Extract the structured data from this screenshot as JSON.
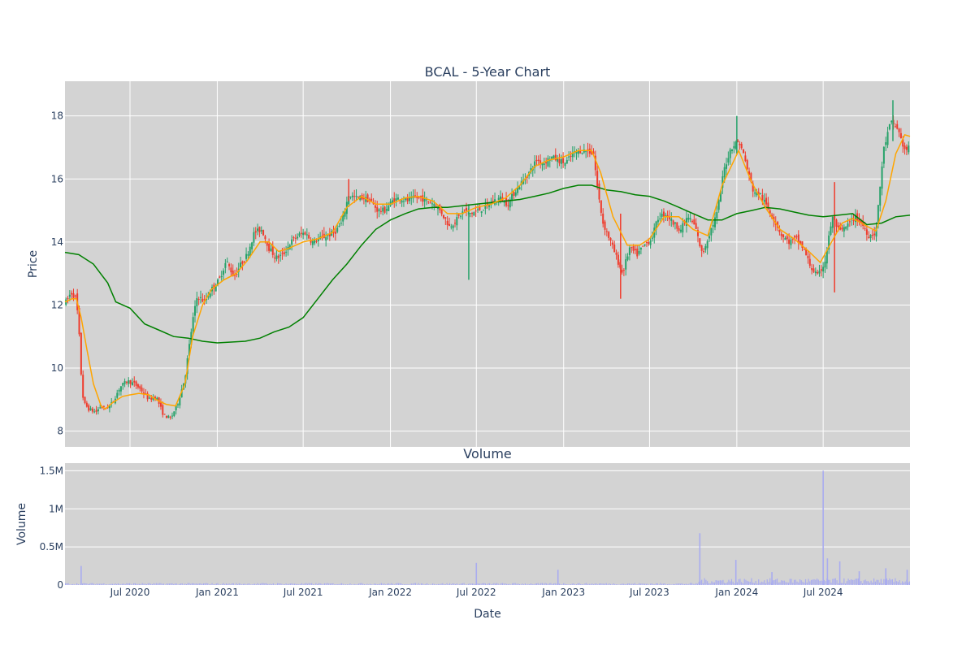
{
  "chart_data": [
    {
      "type": "candlestick",
      "title": "BCAL - 5-Year Chart",
      "ylabel": "Price",
      "xlabel": "",
      "ylim": [
        7.5,
        19.1
      ],
      "y_ticks": [
        8,
        10,
        12,
        14,
        16,
        18
      ],
      "grid": true,
      "colors": {
        "increasing": "#26a269",
        "decreasing": "#ef3b2c",
        "ma_short": "#ffa500",
        "ma_long": "#008000",
        "plot_bg": "#d3d3d3",
        "grid": "#ffffff"
      },
      "x_range": [
        "2020-02-15",
        "2024-12-31"
      ],
      "x_ticks": [
        {
          "date": "2020-07-01",
          "label": "Jul 2020"
        },
        {
          "date": "2021-01-01",
          "label": "Jan 2021"
        },
        {
          "date": "2021-07-01",
          "label": "Jul 2021"
        },
        {
          "date": "2022-01-01",
          "label": "Jan 2022"
        },
        {
          "date": "2022-07-01",
          "label": "Jul 2022"
        },
        {
          "date": "2023-01-01",
          "label": "Jan 2023"
        },
        {
          "date": "2023-07-01",
          "label": "Jul 2023"
        },
        {
          "date": "2024-01-01",
          "label": "Jan 2024"
        },
        {
          "date": "2024-07-01",
          "label": "Jul 2024"
        }
      ],
      "close_path": [
        [
          "2020-02-17",
          12.1
        ],
        [
          "2020-02-28",
          12.4
        ],
        [
          "2020-03-10",
          12.2
        ],
        [
          "2020-03-16",
          11.0
        ],
        [
          "2020-03-19",
          10.0
        ],
        [
          "2020-03-25",
          8.9
        ],
        [
          "2020-04-05",
          8.7
        ],
        [
          "2020-04-20",
          8.6
        ],
        [
          "2020-05-01",
          8.8
        ],
        [
          "2020-05-10",
          8.7
        ],
        [
          "2020-05-25",
          8.9
        ],
        [
          "2020-06-10",
          9.4
        ],
        [
          "2020-06-25",
          9.6
        ],
        [
          "2020-07-10",
          9.5
        ],
        [
          "2020-07-25",
          9.3
        ],
        [
          "2020-08-10",
          9.0
        ],
        [
          "2020-08-25",
          9.1
        ],
        [
          "2020-09-10",
          8.5
        ],
        [
          "2020-09-25",
          8.4
        ],
        [
          "2020-10-10",
          8.9
        ],
        [
          "2020-10-25",
          9.7
        ],
        [
          "2020-11-10",
          11.5
        ],
        [
          "2020-11-20",
          12.3
        ],
        [
          "2020-12-05",
          12.1
        ],
        [
          "2020-12-20",
          12.5
        ],
        [
          "2021-01-05",
          12.8
        ],
        [
          "2021-01-20",
          13.4
        ],
        [
          "2021-02-05",
          12.9
        ],
        [
          "2021-02-20",
          13.3
        ],
        [
          "2021-03-05",
          13.6
        ],
        [
          "2021-03-20",
          14.3
        ],
        [
          "2021-04-05",
          14.4
        ],
        [
          "2021-04-20",
          13.8
        ],
        [
          "2021-05-05",
          13.5
        ],
        [
          "2021-05-20",
          13.6
        ],
        [
          "2021-06-05",
          14.0
        ],
        [
          "2021-06-20",
          14.2
        ],
        [
          "2021-07-05",
          14.3
        ],
        [
          "2021-07-20",
          14.0
        ],
        [
          "2021-08-05",
          14.1
        ],
        [
          "2021-08-20",
          14.2
        ],
        [
          "2021-09-05",
          14.3
        ],
        [
          "2021-09-20",
          14.6
        ],
        [
          "2021-10-05",
          15.5
        ],
        [
          "2021-10-20",
          15.4
        ],
        [
          "2021-11-05",
          15.4
        ],
        [
          "2021-11-20",
          15.3
        ],
        [
          "2021-12-05",
          15.0
        ],
        [
          "2021-12-20",
          15.0
        ],
        [
          "2022-01-05",
          15.3
        ],
        [
          "2022-01-20",
          15.4
        ],
        [
          "2022-02-05",
          15.3
        ],
        [
          "2022-02-20",
          15.4
        ],
        [
          "2022-03-05",
          15.4
        ],
        [
          "2022-03-20",
          15.3
        ],
        [
          "2022-04-05",
          15.2
        ],
        [
          "2022-04-20",
          14.9
        ],
        [
          "2022-05-05",
          14.5
        ],
        [
          "2022-05-20",
          14.7
        ],
        [
          "2022-06-05",
          15.0
        ],
        [
          "2022-06-20",
          14.9
        ],
        [
          "2022-07-05",
          15.0
        ],
        [
          "2022-07-20",
          15.1
        ],
        [
          "2022-08-05",
          15.3
        ],
        [
          "2022-08-20",
          15.4
        ],
        [
          "2022-09-05",
          15.2
        ],
        [
          "2022-09-20",
          15.6
        ],
        [
          "2022-10-05",
          15.9
        ],
        [
          "2022-10-20",
          16.2
        ],
        [
          "2022-11-05",
          16.6
        ],
        [
          "2022-11-20",
          16.5
        ],
        [
          "2022-12-05",
          16.7
        ],
        [
          "2022-12-20",
          16.6
        ],
        [
          "2023-01-05",
          16.5
        ],
        [
          "2023-01-20",
          16.8
        ],
        [
          "2023-02-05",
          16.9
        ],
        [
          "2023-02-20",
          16.9
        ],
        [
          "2023-03-05",
          16.8
        ],
        [
          "2023-03-15",
          15.5
        ],
        [
          "2023-03-25",
          14.6
        ],
        [
          "2023-04-05",
          14.2
        ],
        [
          "2023-04-20",
          13.6
        ],
        [
          "2023-05-05",
          13.0
        ],
        [
          "2023-05-20",
          13.8
        ],
        [
          "2023-06-05",
          13.6
        ],
        [
          "2023-06-20",
          13.9
        ],
        [
          "2023-07-05",
          14.1
        ],
        [
          "2023-07-20",
          14.8
        ],
        [
          "2023-08-05",
          14.9
        ],
        [
          "2023-08-20",
          14.6
        ],
        [
          "2023-09-05",
          14.4
        ],
        [
          "2023-09-20",
          14.8
        ],
        [
          "2023-10-05",
          14.5
        ],
        [
          "2023-10-20",
          13.6
        ],
        [
          "2023-11-05",
          14.3
        ],
        [
          "2023-11-20",
          14.9
        ],
        [
          "2023-12-05",
          16.3
        ],
        [
          "2023-12-20",
          17.0
        ],
        [
          "2024-01-05",
          17.2
        ],
        [
          "2024-01-15",
          16.8
        ],
        [
          "2024-01-25",
          16.2
        ],
        [
          "2024-02-05",
          15.6
        ],
        [
          "2024-02-20",
          15.5
        ],
        [
          "2024-03-05",
          15.1
        ],
        [
          "2024-03-20",
          14.7
        ],
        [
          "2024-04-05",
          14.2
        ],
        [
          "2024-04-20",
          14.0
        ],
        [
          "2024-05-05",
          14.1
        ],
        [
          "2024-05-20",
          13.8
        ],
        [
          "2024-06-05",
          13.2
        ],
        [
          "2024-06-20",
          12.9
        ],
        [
          "2024-07-05",
          13.4
        ],
        [
          "2024-07-20",
          14.8
        ],
        [
          "2024-08-05",
          14.3
        ],
        [
          "2024-08-20",
          14.5
        ],
        [
          "2024-09-05",
          14.8
        ],
        [
          "2024-09-20",
          14.6
        ],
        [
          "2024-10-05",
          14.2
        ],
        [
          "2024-10-20",
          14.3
        ],
        [
          "2024-11-05",
          16.9
        ],
        [
          "2024-11-20",
          17.8
        ],
        [
          "2024-12-05",
          17.6
        ],
        [
          "2024-12-20",
          16.9
        ],
        [
          "2024-12-30",
          17.0
        ]
      ],
      "ma_short": [
        [
          "2020-02-15",
          12.1
        ],
        [
          "2020-03-01",
          12.2
        ],
        [
          "2020-03-10",
          12.2
        ],
        [
          "2020-03-20",
          11.6
        ],
        [
          "2020-04-01",
          10.6
        ],
        [
          "2020-04-15",
          9.5
        ],
        [
          "2020-05-01",
          8.8
        ],
        [
          "2020-05-10",
          8.7
        ],
        [
          "2020-05-25",
          8.9
        ],
        [
          "2020-06-15",
          9.1
        ],
        [
          "2020-07-01",
          9.15
        ],
        [
          "2020-07-20",
          9.2
        ],
        [
          "2020-08-10",
          9.15
        ],
        [
          "2020-08-25",
          9.0
        ],
        [
          "2020-09-15",
          8.85
        ],
        [
          "2020-10-05",
          8.8
        ],
        [
          "2020-10-25",
          9.5
        ],
        [
          "2020-11-10",
          11.0
        ],
        [
          "2020-12-01",
          12.0
        ],
        [
          "2020-12-20",
          12.5
        ],
        [
          "2021-01-15",
          12.8
        ],
        [
          "2021-02-10",
          13.0
        ],
        [
          "2021-03-05",
          13.4
        ],
        [
          "2021-04-01",
          14.0
        ],
        [
          "2021-04-20",
          14.0
        ],
        [
          "2021-05-10",
          13.7
        ],
        [
          "2021-06-01",
          13.8
        ],
        [
          "2021-07-01",
          14.0
        ],
        [
          "2021-08-01",
          14.1
        ],
        [
          "2021-09-01",
          14.3
        ],
        [
          "2021-10-01",
          15.1
        ],
        [
          "2021-11-01",
          15.45
        ],
        [
          "2021-12-01",
          15.2
        ],
        [
          "2022-01-01",
          15.2
        ],
        [
          "2022-02-01",
          15.4
        ],
        [
          "2022-03-01",
          15.45
        ],
        [
          "2022-04-01",
          15.3
        ],
        [
          "2022-05-01",
          14.9
        ],
        [
          "2022-06-01",
          14.9
        ],
        [
          "2022-07-01",
          15.1
        ],
        [
          "2022-08-01",
          15.2
        ],
        [
          "2022-09-01",
          15.4
        ],
        [
          "2022-10-01",
          15.8
        ],
        [
          "2022-11-01",
          16.4
        ],
        [
          "2022-12-01",
          16.6
        ],
        [
          "2023-01-01",
          16.7
        ],
        [
          "2023-02-01",
          16.9
        ],
        [
          "2023-03-01",
          16.9
        ],
        [
          "2023-03-20",
          16.2
        ],
        [
          "2023-04-15",
          14.8
        ],
        [
          "2023-05-15",
          13.9
        ],
        [
          "2023-06-10",
          13.9
        ],
        [
          "2023-07-01",
          14.1
        ],
        [
          "2023-08-01",
          14.8
        ],
        [
          "2023-09-01",
          14.8
        ],
        [
          "2023-10-01",
          14.4
        ],
        [
          "2023-11-01",
          14.2
        ],
        [
          "2023-12-01",
          15.8
        ],
        [
          "2024-01-05",
          16.9
        ],
        [
          "2024-02-01",
          15.9
        ],
        [
          "2024-03-01",
          15.1
        ],
        [
          "2024-04-01",
          14.4
        ],
        [
          "2024-05-01",
          14.1
        ],
        [
          "2024-06-01",
          13.7
        ],
        [
          "2024-06-25",
          13.35
        ],
        [
          "2024-07-15",
          13.9
        ],
        [
          "2024-08-10",
          14.6
        ],
        [
          "2024-09-01",
          14.75
        ],
        [
          "2024-10-01",
          14.5
        ],
        [
          "2024-10-20",
          14.35
        ],
        [
          "2024-11-10",
          15.3
        ],
        [
          "2024-12-01",
          16.8
        ],
        [
          "2024-12-20",
          17.4
        ],
        [
          "2024-12-31",
          17.35
        ]
      ],
      "ma_long": [
        [
          "2020-02-15",
          13.67
        ],
        [
          "2020-03-15",
          13.6
        ],
        [
          "2020-04-15",
          13.3
        ],
        [
          "2020-05-15",
          12.7
        ],
        [
          "2020-06-01",
          12.1
        ],
        [
          "2020-07-01",
          11.9
        ],
        [
          "2020-08-01",
          11.4
        ],
        [
          "2020-09-01",
          11.2
        ],
        [
          "2020-10-01",
          11.0
        ],
        [
          "2020-11-01",
          10.95
        ],
        [
          "2020-12-01",
          10.85
        ],
        [
          "2021-01-01",
          10.8
        ],
        [
          "2021-03-01",
          10.85
        ],
        [
          "2021-04-01",
          10.95
        ],
        [
          "2021-05-01",
          11.15
        ],
        [
          "2021-06-01",
          11.3
        ],
        [
          "2021-07-01",
          11.6
        ],
        [
          "2021-08-01",
          12.2
        ],
        [
          "2021-09-01",
          12.8
        ],
        [
          "2021-10-01",
          13.3
        ],
        [
          "2021-11-01",
          13.9
        ],
        [
          "2021-12-01",
          14.4
        ],
        [
          "2022-01-01",
          14.7
        ],
        [
          "2022-02-01",
          14.9
        ],
        [
          "2022-03-01",
          15.05
        ],
        [
          "2022-04-01",
          15.1
        ],
        [
          "2022-05-01",
          15.1
        ],
        [
          "2022-06-01",
          15.15
        ],
        [
          "2022-07-01",
          15.2
        ],
        [
          "2022-08-01",
          15.25
        ],
        [
          "2022-09-01",
          15.3
        ],
        [
          "2022-10-01",
          15.35
        ],
        [
          "2022-11-01",
          15.45
        ],
        [
          "2022-12-01",
          15.55
        ],
        [
          "2023-01-01",
          15.7
        ],
        [
          "2023-02-01",
          15.8
        ],
        [
          "2023-03-01",
          15.8
        ],
        [
          "2023-04-01",
          15.65
        ],
        [
          "2023-05-01",
          15.6
        ],
        [
          "2023-06-01",
          15.5
        ],
        [
          "2023-07-01",
          15.45
        ],
        [
          "2023-08-01",
          15.3
        ],
        [
          "2023-09-01",
          15.1
        ],
        [
          "2023-10-01",
          14.9
        ],
        [
          "2023-11-01",
          14.7
        ],
        [
          "2023-12-01",
          14.7
        ],
        [
          "2024-01-01",
          14.9
        ],
        [
          "2024-02-01",
          15.0
        ],
        [
          "2024-03-01",
          15.1
        ],
        [
          "2024-04-01",
          15.05
        ],
        [
          "2024-05-01",
          14.95
        ],
        [
          "2024-06-01",
          14.85
        ],
        [
          "2024-07-01",
          14.8
        ],
        [
          "2024-08-01",
          14.85
        ],
        [
          "2024-09-01",
          14.9
        ],
        [
          "2024-10-01",
          14.55
        ],
        [
          "2024-11-01",
          14.6
        ],
        [
          "2024-12-01",
          14.8
        ],
        [
          "2024-12-31",
          14.85
        ]
      ],
      "spikes": [
        {
          "date": "2022-06-15",
          "low": 12.8,
          "high": 15.2
        },
        {
          "date": "2023-05-01",
          "low": 12.2,
          "high": 14.9
        },
        {
          "date": "2024-01-01",
          "low": 16.8,
          "high": 18.0
        },
        {
          "date": "2024-07-25",
          "low": 12.4,
          "high": 15.9
        },
        {
          "date": "2024-11-25",
          "low": 17.2,
          "high": 18.5
        },
        {
          "date": "2021-10-05",
          "low": 15.3,
          "high": 16.0
        }
      ]
    },
    {
      "type": "bar",
      "title": "Volume",
      "xlabel": "Date",
      "ylabel": "Volume",
      "ylim": [
        0,
        1600000
      ],
      "y_ticks": [
        {
          "value": 0,
          "label": "0"
        },
        {
          "value": 500000,
          "label": "0.5M"
        },
        {
          "value": 1000000,
          "label": "1M"
        },
        {
          "value": 1500000,
          "label": "1.5M"
        }
      ],
      "bar_color": "#a9acf0",
      "spikes": [
        [
          "2020-03-20",
          250000
        ],
        [
          "2022-07-01",
          290000
        ],
        [
          "2022-12-20",
          200000
        ],
        [
          "2023-10-15",
          680000
        ],
        [
          "2023-12-30",
          330000
        ],
        [
          "2024-03-15",
          170000
        ],
        [
          "2024-07-01",
          1500000
        ],
        [
          "2024-07-10",
          350000
        ],
        [
          "2024-08-05",
          310000
        ],
        [
          "2024-09-15",
          180000
        ],
        [
          "2024-11-10",
          220000
        ],
        [
          "2024-12-25",
          200000
        ]
      ]
    }
  ]
}
